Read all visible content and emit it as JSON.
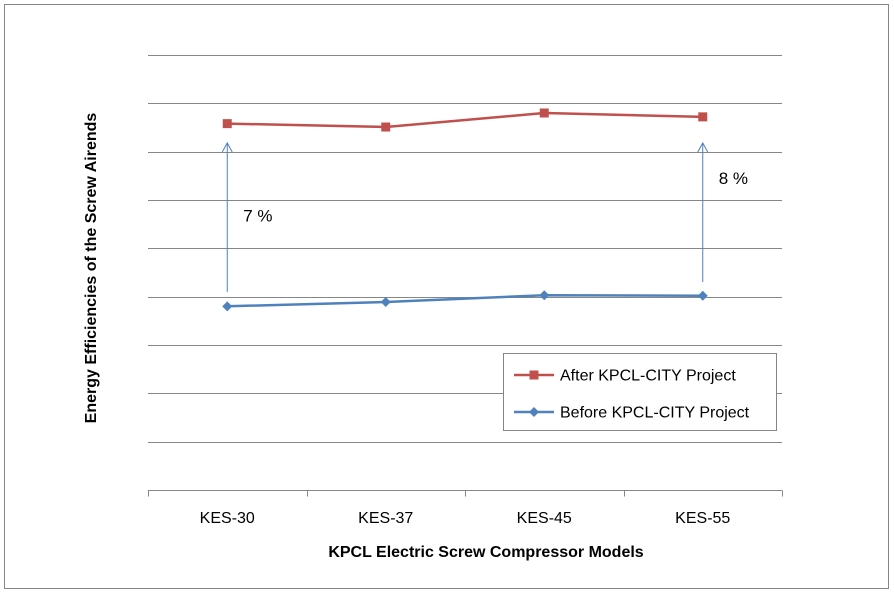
{
  "chart_data": {
    "type": "line",
    "title": "",
    "xlabel": "KPCL Electric Screw Compressor Models",
    "ylabel": "Energy Efficiencies of the Screw Airends",
    "categories": [
      "KES-30",
      "KES-37",
      "KES-45",
      "KES-55"
    ],
    "ylim": [
      0,
      9
    ],
    "y_ticks_labeled": false,
    "grid": true,
    "legend_position": "bottom-right",
    "series": [
      {
        "name": "After KPCL-CITY Project",
        "values": [
          7.58,
          7.51,
          7.8,
          7.72
        ],
        "color": "#C0504D",
        "marker": "square"
      },
      {
        "name": "Before KPCL-CITY Project",
        "values": [
          3.8,
          3.89,
          4.03,
          4.02
        ],
        "color": "#4F81BD",
        "marker": "diamond"
      }
    ],
    "annotations": [
      {
        "text": "7 %",
        "category": "KES-30",
        "arrow_from": 4.1,
        "arrow_to": 7.18
      },
      {
        "text": "8 %",
        "category": "KES-55",
        "arrow_from": 4.3,
        "arrow_to": 7.18
      }
    ],
    "annotation_color": "#4F81BD"
  }
}
